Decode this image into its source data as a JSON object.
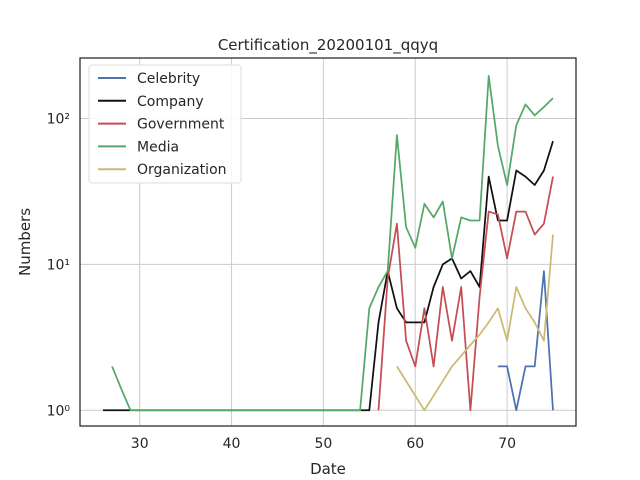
{
  "chart_data": {
    "type": "line",
    "title": "Certification_20200101_qqyq",
    "xlabel": "Date",
    "ylabel": "Numbers",
    "yscale": "log",
    "xlim": [
      23.5,
      77.5
    ],
    "ylim": [
      0.78,
      260
    ],
    "xticks": [
      30,
      40,
      50,
      60,
      70
    ],
    "xtick_labels": [
      "30",
      "40",
      "50",
      "60",
      "70"
    ],
    "yticks": [
      1,
      10,
      100
    ],
    "ytick_labels": [
      "10⁰",
      "10¹",
      "10²"
    ],
    "grid": true,
    "legend_position": "top-left",
    "series": [
      {
        "name": "Celebrity",
        "color": "#4c72b0",
        "points": [
          [
            69,
            2
          ],
          [
            70,
            2
          ],
          [
            71,
            1
          ],
          [
            72,
            2
          ],
          [
            73,
            2
          ],
          [
            74,
            9
          ],
          [
            75,
            1
          ]
        ]
      },
      {
        "name": "Company",
        "color": "#111111",
        "points": [
          [
            26,
            1
          ],
          [
            27,
            1
          ],
          [
            28,
            1
          ],
          [
            29,
            1
          ],
          [
            30,
            1
          ],
          [
            31,
            1
          ],
          [
            32,
            1
          ],
          [
            33,
            1
          ],
          [
            34,
            1
          ],
          [
            35,
            1
          ],
          [
            36,
            1
          ],
          [
            37,
            1
          ],
          [
            38,
            1
          ],
          [
            39,
            1
          ],
          [
            40,
            1
          ],
          [
            41,
            1
          ],
          [
            42,
            1
          ],
          [
            43,
            1
          ],
          [
            44,
            1
          ],
          [
            45,
            1
          ],
          [
            46,
            1
          ],
          [
            47,
            1
          ],
          [
            48,
            1
          ],
          [
            49,
            1
          ],
          [
            50,
            1
          ],
          [
            51,
            1
          ],
          [
            52,
            1
          ],
          [
            53,
            1
          ],
          [
            54,
            1
          ],
          [
            55,
            1
          ],
          [
            56,
            4
          ],
          [
            57,
            9
          ],
          [
            58,
            5
          ],
          [
            59,
            4
          ],
          [
            60,
            4
          ],
          [
            61,
            4
          ],
          [
            62,
            7
          ],
          [
            63,
            10
          ],
          [
            64,
            11
          ],
          [
            65,
            8
          ],
          [
            66,
            9
          ],
          [
            67,
            7
          ],
          [
            68,
            40
          ],
          [
            69,
            20
          ],
          [
            70,
            20
          ],
          [
            71,
            44
          ],
          [
            72,
            40
          ],
          [
            73,
            35
          ],
          [
            74,
            44
          ],
          [
            75,
            70
          ]
        ]
      },
      {
        "name": "Government",
        "color": "#c44e52",
        "points": [
          [
            56,
            1
          ],
          [
            57,
            8
          ],
          [
            58,
            19
          ],
          [
            59,
            3
          ],
          [
            60,
            2
          ],
          [
            61,
            5
          ],
          [
            62,
            2
          ],
          [
            63,
            7
          ],
          [
            64,
            3
          ],
          [
            65,
            7
          ],
          [
            66,
            1
          ],
          [
            67,
            6
          ],
          [
            68,
            23
          ],
          [
            69,
            22
          ],
          [
            70,
            11
          ],
          [
            71,
            23
          ],
          [
            72,
            23
          ],
          [
            73,
            16
          ],
          [
            74,
            19
          ],
          [
            75,
            40
          ]
        ]
      },
      {
        "name": "Media",
        "color": "#55a868",
        "points": [
          [
            27,
            2
          ],
          [
            28,
            1.4
          ],
          [
            29,
            1
          ],
          [
            30,
            1
          ],
          [
            31,
            1
          ],
          [
            32,
            1
          ],
          [
            33,
            1
          ],
          [
            34,
            1
          ],
          [
            35,
            1
          ],
          [
            36,
            1
          ],
          [
            37,
            1
          ],
          [
            38,
            1
          ],
          [
            39,
            1
          ],
          [
            40,
            1
          ],
          [
            41,
            1
          ],
          [
            42,
            1
          ],
          [
            43,
            1
          ],
          [
            44,
            1
          ],
          [
            45,
            1
          ],
          [
            46,
            1
          ],
          [
            47,
            1
          ],
          [
            48,
            1
          ],
          [
            49,
            1
          ],
          [
            50,
            1
          ],
          [
            51,
            1
          ],
          [
            52,
            1
          ],
          [
            53,
            1
          ],
          [
            54,
            1
          ],
          [
            55,
            5
          ],
          [
            56,
            7
          ],
          [
            57,
            9
          ],
          [
            58,
            77
          ],
          [
            59,
            18
          ],
          [
            60,
            13
          ],
          [
            61,
            26
          ],
          [
            62,
            21
          ],
          [
            63,
            27
          ],
          [
            64,
            11
          ],
          [
            65,
            21
          ],
          [
            66,
            20
          ],
          [
            67,
            20
          ],
          [
            68,
            196
          ],
          [
            69,
            65
          ],
          [
            70,
            35
          ],
          [
            71,
            90
          ],
          [
            72,
            125
          ],
          [
            73,
            105
          ],
          [
            74,
            120
          ],
          [
            75,
            138
          ]
        ]
      },
      {
        "name": "Organization",
        "color": "#ccb974",
        "points": [
          [
            58,
            2
          ],
          [
            61,
            1
          ],
          [
            64,
            2
          ],
          [
            66,
            2.8
          ],
          [
            67,
            3.3
          ],
          [
            68,
            4
          ],
          [
            69,
            5
          ],
          [
            70,
            3
          ],
          [
            71,
            7
          ],
          [
            72,
            5
          ],
          [
            73,
            4
          ],
          [
            74,
            3
          ],
          [
            75,
            16
          ]
        ]
      }
    ]
  }
}
